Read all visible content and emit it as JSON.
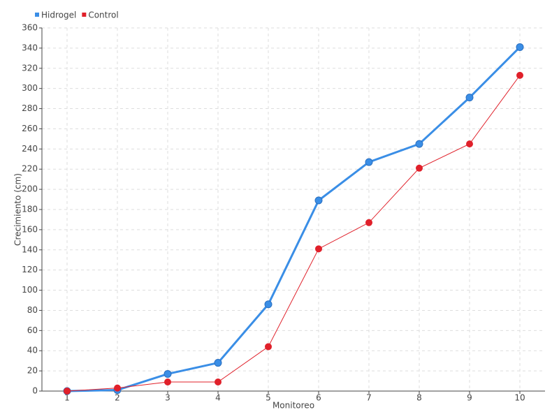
{
  "chart_data": {
    "type": "line",
    "x": [
      1,
      2,
      3,
      4,
      5,
      6,
      7,
      8,
      9,
      10
    ],
    "xlim": [
      0.5,
      10.5
    ],
    "xticks": [
      1,
      2,
      3,
      4,
      5,
      6,
      7,
      8,
      9,
      10
    ],
    "ylim": [
      0,
      360
    ],
    "yticks": [
      0,
      20,
      40,
      60,
      80,
      100,
      120,
      140,
      160,
      180,
      200,
      220,
      240,
      260,
      280,
      300,
      320,
      340,
      360
    ],
    "x_label": "Monitoreo",
    "y_label": "Crecimiento (cm)",
    "grid": true,
    "legend": "top-left",
    "series": [
      {
        "name": "Hidrogel",
        "color": "#3a8ee6",
        "values": [
          0,
          1,
          17,
          28,
          86,
          189,
          227,
          245,
          291,
          341
        ]
      },
      {
        "name": "Control",
        "color": "#e0202a",
        "values": [
          0,
          3,
          9,
          9,
          44,
          141,
          167,
          221,
          245,
          313
        ]
      }
    ]
  }
}
